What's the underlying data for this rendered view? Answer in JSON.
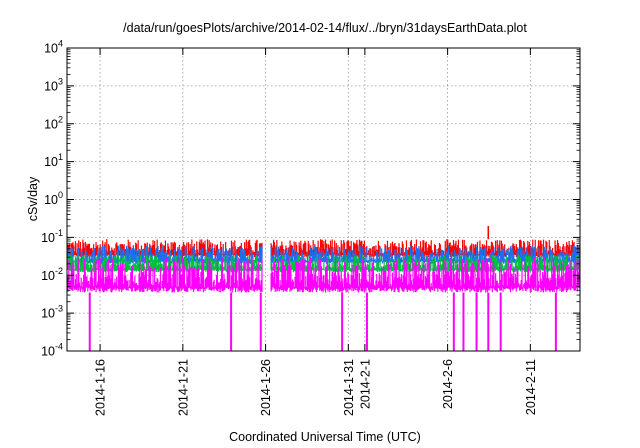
{
  "chart_data": {
    "type": "line",
    "title": "/data/run/goesPlots/archive/2014-02-14/flux/../bryn/31daysEarthData.plot",
    "xlabel": "Coordinated Universal Time (UTC)",
    "ylabel": "cSv/day",
    "y_scale": "log",
    "ylim": [
      0.0001,
      10000
    ],
    "y_ticks": [
      {
        "value": 0.0001,
        "base": "10",
        "exp": "-4"
      },
      {
        "value": 0.001,
        "base": "10",
        "exp": "-3"
      },
      {
        "value": 0.01,
        "base": "10",
        "exp": "-2"
      },
      {
        "value": 0.1,
        "base": "10",
        "exp": "-1"
      },
      {
        "value": 1,
        "base": "10",
        "exp": "0"
      },
      {
        "value": 10,
        "base": "10",
        "exp": "1"
      },
      {
        "value": 100,
        "base": "10",
        "exp": "2"
      },
      {
        "value": 1000,
        "base": "10",
        "exp": "3"
      },
      {
        "value": 10000,
        "base": "10",
        "exp": "4"
      }
    ],
    "xlim": [
      "2014-01-14",
      "2014-02-14"
    ],
    "x_ticks": [
      "2014-1-16",
      "2014-1-21",
      "2014-1-26",
      "2014-1-31",
      "2014-2-1",
      "2014-2-6",
      "2014-2-11"
    ],
    "x_tick_dates": [
      "2014-01-16",
      "2014-01-21",
      "2014-01-26",
      "2014-01-31",
      "2014-02-01",
      "2014-02-06",
      "2014-02-11"
    ],
    "grid": true,
    "data_gap": [
      "2014-01-25T19:00",
      "2014-01-26T07:00"
    ],
    "series": [
      {
        "color": "#ff0000",
        "typical_range": [
          0.03,
          0.09
        ],
        "spike": {
          "date": "2014-02-08T11:00",
          "value": 0.2
        }
      },
      {
        "color": "#1e6ef0",
        "typical_range": [
          0.02,
          0.06
        ]
      },
      {
        "color": "#00c040",
        "typical_range": [
          0.012,
          0.035
        ]
      },
      {
        "color": "#ff00ff",
        "typical_range": [
          0.0035,
          0.03
        ],
        "dropouts": [
          "2014-01-15T09:00",
          "2014-01-23T22:00",
          "2014-01-25T17:00",
          "2014-01-30T15:00",
          "2014-02-01T03:00",
          "2014-02-06T09:00",
          "2014-02-06T23:00",
          "2014-02-07T18:00",
          "2014-02-08T11:00",
          "2014-02-09T05:00",
          "2014-02-12T13:00"
        ]
      }
    ]
  }
}
